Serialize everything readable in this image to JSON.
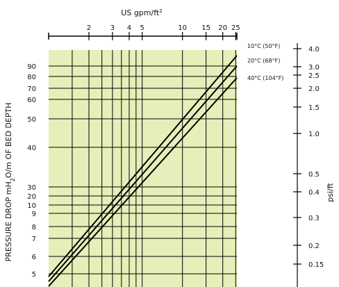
{
  "chart_data": {
    "type": "line",
    "title": "",
    "top_axis": {
      "label": "US gpm/ft",
      "label_sup": "2",
      "ticks": [
        "2",
        "3",
        "4",
        "5",
        "10",
        "15",
        "20",
        "25"
      ]
    },
    "top_axis_scale": "log",
    "left_axis": {
      "label_parts": [
        "PRESSURE DROP mH",
        "2",
        "O/m OF BED DEPTH"
      ],
      "ticks": [
        "90",
        "80",
        "70",
        "60",
        "50",
        "40",
        "30",
        "20",
        "10",
        "9",
        "8",
        "7",
        "6",
        "5"
      ]
    },
    "right_axis": {
      "label": "psi/ft",
      "ticks": [
        "4.0",
        "3.0",
        "2.5",
        "2.0",
        "1.5",
        "1.0",
        "0.5",
        "0.4",
        "0.3",
        "0.2",
        "0.15"
      ]
    },
    "grid": true,
    "plot_background": "#e6efb9",
    "series": [
      {
        "name": "10°C (50°F)",
        "x_start": 1.0,
        "x_end": 25.5,
        "y_start_label": "5",
        "y_end_label": "90"
      },
      {
        "name": "20°C (68°F)",
        "x_start": 1.0,
        "x_end": 25.5,
        "y_start_label": "5",
        "y_end_label": "80"
      },
      {
        "name": "40°C (104°F)",
        "x_start": 1.0,
        "x_end": 25.5,
        "y_start_label": "5",
        "y_end_label": "70"
      }
    ],
    "legend_placement": "right, at line ends"
  },
  "colors": {
    "plot_background": "#e6efb9",
    "line": "#000000",
    "grid": "#000000"
  }
}
